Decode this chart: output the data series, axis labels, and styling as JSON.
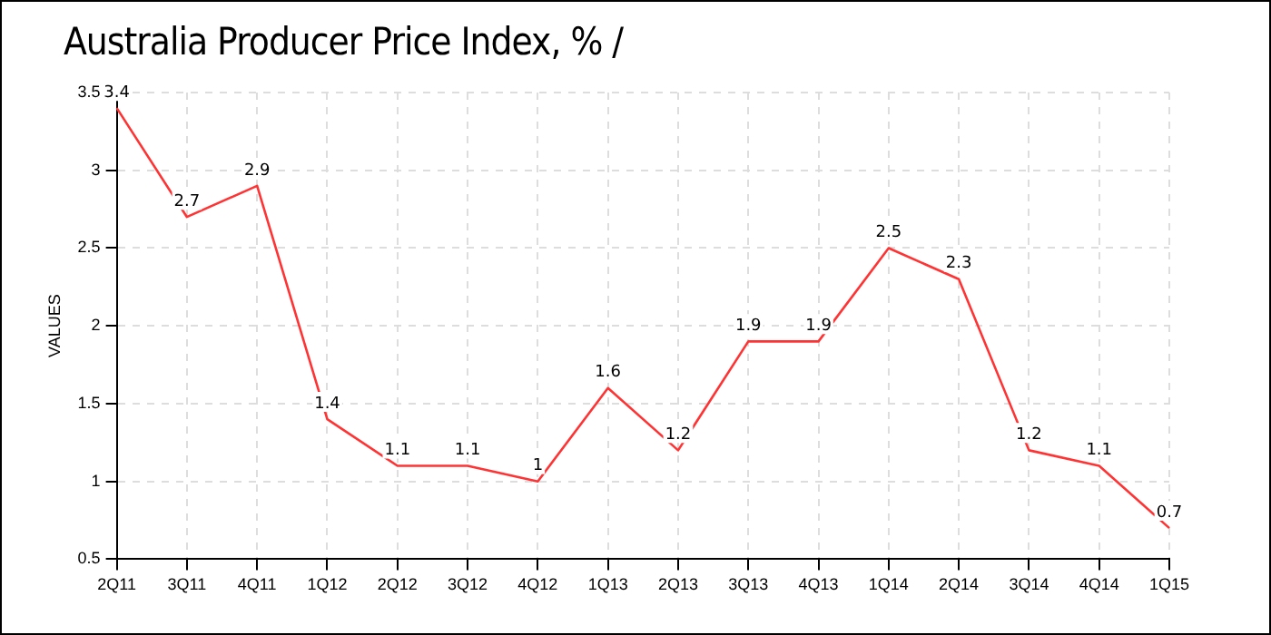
{
  "chart_data": {
    "type": "line",
    "title": "Australia Producer Price Index, %  /",
    "ylabel": "VALUES",
    "categories": [
      "2Q11",
      "3Q11",
      "4Q11",
      "1Q12",
      "2Q12",
      "3Q12",
      "4Q12",
      "1Q13",
      "2Q13",
      "3Q13",
      "4Q13",
      "1Q14",
      "2Q14",
      "3Q14",
      "4Q14",
      "1Q15"
    ],
    "series": [
      {
        "color": "#ff3333",
        "values": [
          3.4,
          2.7,
          2.9,
          1.4,
          1.1,
          1.1,
          1.0,
          1.6,
          1.2,
          1.9,
          1.9,
          2.5,
          2.3,
          1.2,
          1.1,
          0.7
        ]
      }
    ],
    "ylim": [
      0.5,
      3.5
    ],
    "yticks": [
      0.5,
      1,
      1.5,
      2,
      2.5,
      3,
      3.5
    ],
    "grid": true,
    "legend": false,
    "marker": "none",
    "line_style": "solid",
    "data_labels": true
  }
}
